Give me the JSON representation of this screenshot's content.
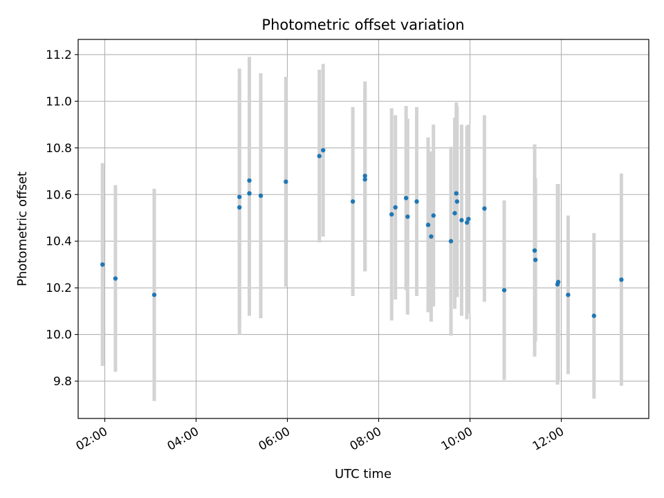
{
  "chart_data": {
    "type": "scatter",
    "title": "Photometric offset variation",
    "xlabel": "UTC time",
    "ylabel": "Photometric offset",
    "grid": true,
    "legend": "none",
    "xlim": [
      "01:25",
      "13:55"
    ],
    "ylim": [
      9.64,
      11.265
    ],
    "xticks": [
      "02:00",
      "04:00",
      "06:00",
      "08:00",
      "10:00",
      "12:00"
    ],
    "yticks": [
      "9.8",
      "10.0",
      "10.2",
      "10.4",
      "10.6",
      "10.8",
      "11.0",
      "11.2"
    ],
    "colors": {
      "point": "#1f77b4",
      "errorbar": "#d3d3d3",
      "grid": "#b0b0b0"
    },
    "series": [
      {
        "points": [
          {
            "x": "01:57",
            "y": 10.3,
            "err": 0.435
          },
          {
            "x": "02:14",
            "y": 10.24,
            "err": 0.4
          },
          {
            "x": "03:05",
            "y": 10.17,
            "err": 0.455
          },
          {
            "x": "04:57",
            "y": 10.545,
            "err": 0.545
          },
          {
            "x": "04:57",
            "y": 10.59,
            "err": 0.55
          },
          {
            "x": "05:10",
            "y": 10.605,
            "err": 0.525
          },
          {
            "x": "05:10",
            "y": 10.66,
            "err": 0.53
          },
          {
            "x": "05:25",
            "y": 10.595,
            "err": 0.525
          },
          {
            "x": "05:58",
            "y": 10.655,
            "err": 0.45
          },
          {
            "x": "06:42",
            "y": 10.765,
            "err": 0.37
          },
          {
            "x": "06:47",
            "y": 10.79,
            "err": 0.37
          },
          {
            "x": "07:26",
            "y": 10.57,
            "err": 0.405
          },
          {
            "x": "07:42",
            "y": 10.665,
            "err": 0.395
          },
          {
            "x": "07:42",
            "y": 10.68,
            "err": 0.405
          },
          {
            "x": "08:17",
            "y": 10.515,
            "err": 0.455
          },
          {
            "x": "08:22",
            "y": 10.545,
            "err": 0.395
          },
          {
            "x": "08:36",
            "y": 10.585,
            "err": 0.395
          },
          {
            "x": "08:38",
            "y": 10.505,
            "err": 0.42
          },
          {
            "x": "08:50",
            "y": 10.57,
            "err": 0.405
          },
          {
            "x": "09:05",
            "y": 10.47,
            "err": 0.375
          },
          {
            "x": "09:09",
            "y": 10.42,
            "err": 0.365
          },
          {
            "x": "09:12",
            "y": 10.51,
            "err": 0.39
          },
          {
            "x": "09:35",
            "y": 10.4,
            "err": 0.405
          },
          {
            "x": "09:40",
            "y": 10.52,
            "err": 0.41
          },
          {
            "x": "09:42",
            "y": 10.605,
            "err": 0.39
          },
          {
            "x": "09:43",
            "y": 10.57,
            "err": 0.41
          },
          {
            "x": "09:49",
            "y": 10.49,
            "err": 0.41
          },
          {
            "x": "09:56",
            "y": 10.48,
            "err": 0.415
          },
          {
            "x": "09:58",
            "y": 10.495,
            "err": 0.405
          },
          {
            "x": "10:19",
            "y": 10.54,
            "err": 0.4
          },
          {
            "x": "10:45",
            "y": 10.19,
            "err": 0.385
          },
          {
            "x": "11:25",
            "y": 10.36,
            "err": 0.455
          },
          {
            "x": "11:26",
            "y": 10.32,
            "err": 0.35
          },
          {
            "x": "11:55",
            "y": 10.215,
            "err": 0.43
          },
          {
            "x": "11:56",
            "y": 10.225,
            "err": 0.42
          },
          {
            "x": "12:09",
            "y": 10.17,
            "err": 0.34
          },
          {
            "x": "12:43",
            "y": 10.08,
            "err": 0.355
          },
          {
            "x": "13:19",
            "y": 10.235,
            "err": 0.455
          }
        ]
      }
    ]
  }
}
